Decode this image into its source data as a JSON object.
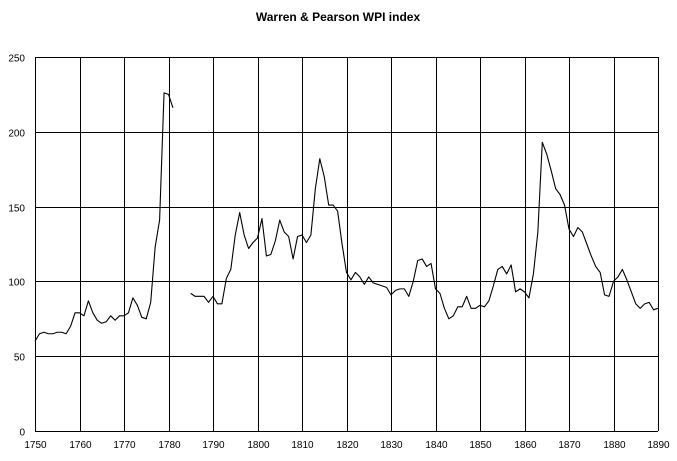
{
  "chart_data": {
    "type": "line",
    "title": "Warren & Pearson WPI index",
    "xlabel": "",
    "ylabel": "",
    "xlim": [
      1750,
      1890
    ],
    "ylim": [
      0,
      250
    ],
    "x_ticks": [
      1750,
      1760,
      1770,
      1780,
      1790,
      1800,
      1810,
      1820,
      1830,
      1840,
      1850,
      1860,
      1870,
      1880,
      1890
    ],
    "y_ticks": [
      0,
      50,
      100,
      150,
      200,
      250
    ],
    "grid": true,
    "legend": "none",
    "series": [
      {
        "segments": [
          {
            "x": [
              1750,
              1751,
              1752,
              1753,
              1754,
              1755,
              1756,
              1757,
              1758,
              1759,
              1760,
              1761,
              1762,
              1763,
              1764,
              1765,
              1766,
              1767,
              1768,
              1769,
              1770,
              1771,
              1772,
              1773,
              1774,
              1775,
              1776,
              1777,
              1778,
              1779,
              1780,
              1781
            ],
            "y": [
              60,
              65,
              66,
              65,
              65,
              66,
              66,
              65,
              70,
              79,
              79,
              77,
              87,
              79,
              74,
              72,
              73,
              77,
              74,
              77,
              77,
              79,
              89,
              84,
              76,
              75,
              86,
              123,
              141,
              226,
              225,
              216
            ]
          },
          {
            "x": [
              1785,
              1786,
              1787,
              1788,
              1789,
              1790,
              1791,
              1792,
              1793,
              1794,
              1795,
              1796,
              1797,
              1798,
              1799,
              1800,
              1801,
              1802,
              1803,
              1804,
              1805,
              1806,
              1807,
              1808,
              1809,
              1810,
              1811,
              1812,
              1813,
              1814,
              1815,
              1816,
              1817,
              1818,
              1819,
              1820,
              1821,
              1822,
              1823,
              1824,
              1825,
              1826,
              1827,
              1828,
              1829,
              1830,
              1831,
              1832,
              1833,
              1834,
              1835,
              1836,
              1837,
              1838,
              1839,
              1840,
              1841,
              1842,
              1843,
              1844,
              1845,
              1846,
              1847,
              1848,
              1849,
              1850,
              1851,
              1852,
              1853,
              1854,
              1855,
              1856,
              1857,
              1858,
              1859,
              1860,
              1861,
              1862,
              1863,
              1864,
              1865,
              1866,
              1867,
              1868,
              1869,
              1870,
              1871,
              1872,
              1873,
              1874,
              1875,
              1876,
              1877,
              1878,
              1879,
              1880,
              1881,
              1882,
              1883,
              1884,
              1885,
              1886,
              1887,
              1888,
              1889,
              1890
            ],
            "y": [
              92,
              90,
              90,
              90,
              86,
              90,
              85,
              85,
              102,
              108,
              131,
              146,
              131,
              122,
              126,
              129,
              142,
              117,
              118,
              127,
              141,
              133,
              130,
              115,
              130,
              131,
              126,
              131,
              162,
              182,
              170,
              151,
              151,
              147,
              125,
              106,
              101,
              106,
              103,
              98,
              103,
              99,
              98,
              97,
              96,
              91,
              94,
              95,
              95,
              90,
              100,
              114,
              115,
              110,
              112,
              95,
              92,
              82,
              75,
              77,
              83,
              83,
              90,
              82,
              82,
              84,
              83,
              87,
              97,
              108,
              110,
              105,
              111,
              93,
              95,
              93,
              89,
              105,
              133,
              193,
              185,
              174,
              162,
              158,
              151,
              135,
              130,
              136,
              133,
              125,
              117,
              110,
              106,
              91,
              90,
              100,
              103,
              108,
              101,
              93,
              85,
              82,
              85,
              86,
              81,
              82
            ]
          }
        ]
      }
    ]
  }
}
